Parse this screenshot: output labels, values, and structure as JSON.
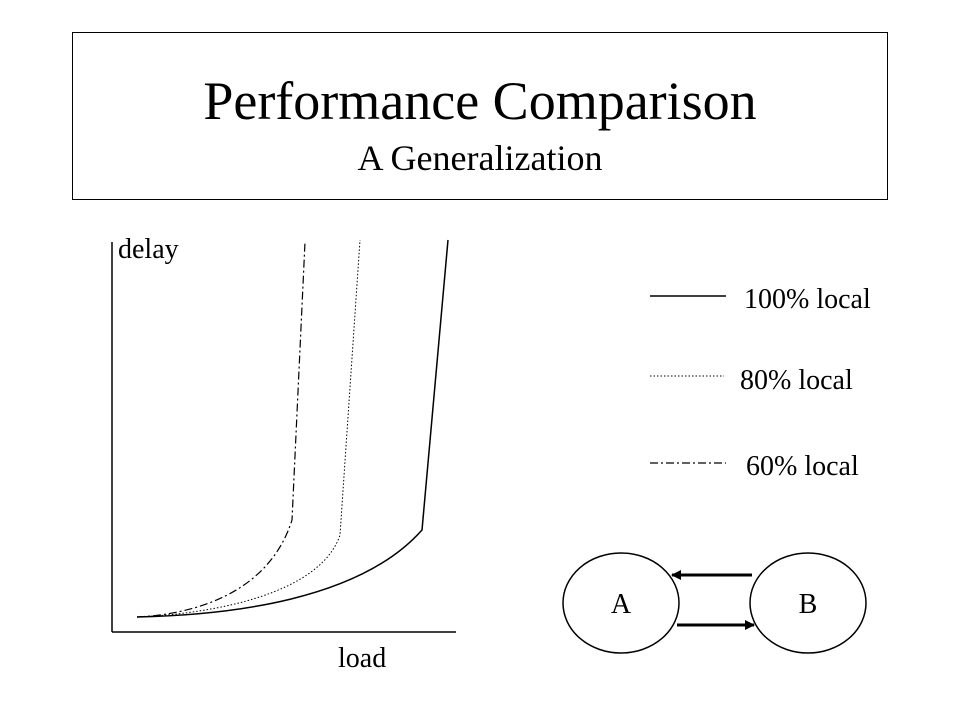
{
  "slide": {
    "title": "Performance Comparison",
    "subtitle": "A Generalization"
  },
  "graph": {
    "y_axis_label": "delay",
    "x_axis_label": "load"
  },
  "legend": [
    {
      "label": "100% local",
      "style": "solid"
    },
    {
      "label": "80% local",
      "style": "dotted"
    },
    {
      "label": "60% local",
      "style": "dash-dot"
    }
  ],
  "nodes": {
    "a_label": "A",
    "b_label": "B"
  },
  "colors": {
    "line": "#000000",
    "background": "#ffffff"
  }
}
